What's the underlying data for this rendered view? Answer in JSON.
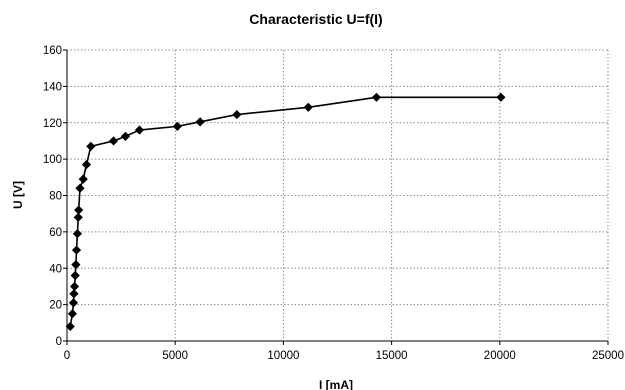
{
  "chart_data": {
    "type": "line",
    "title": "Characteristic U=f(I)",
    "xlabel": "I [mA]",
    "ylabel": "U [V]",
    "xlim": [
      0,
      25000
    ],
    "ylim": [
      0,
      160
    ],
    "xticks": [
      0,
      5000,
      10000,
      15000,
      20000,
      25000
    ],
    "yticks": [
      0,
      20,
      40,
      60,
      80,
      100,
      120,
      140,
      160
    ],
    "grid": true,
    "legend": "none",
    "marker": "diamond",
    "line_color": "#000000",
    "series": [
      {
        "x": [
          150,
          250,
          300,
          320,
          350,
          380,
          410,
          440,
          480,
          520,
          540,
          600,
          750,
          900,
          1100,
          2150,
          2700,
          3350,
          5100,
          6150,
          7850,
          11150,
          14300,
          20050
        ],
        "y": [
          8,
          15,
          21,
          26,
          30,
          36,
          42,
          50,
          59,
          68,
          72,
          84,
          89,
          97,
          107,
          110,
          112.5,
          116,
          118,
          120.5,
          124.5,
          128.5,
          134,
          134
        ]
      }
    ]
  }
}
